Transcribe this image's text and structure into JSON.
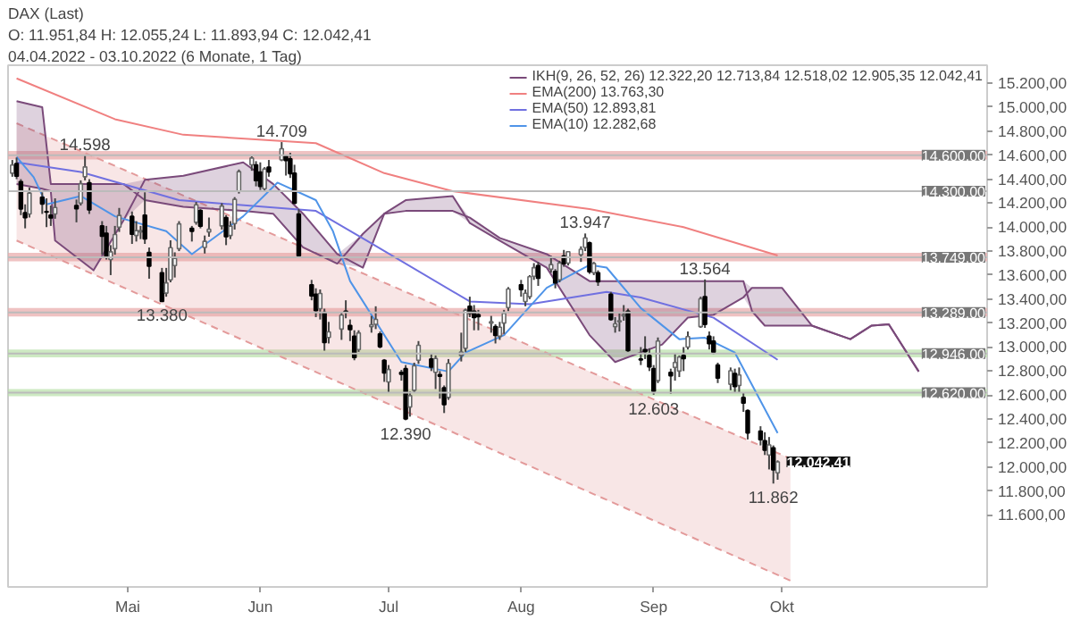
{
  "chart_data": {
    "type": "candlestick",
    "title": "DAX (Last)",
    "subtitle": "04.04.2022 - 03.10.2022 (6 Monate, 1 Tag)",
    "annotations": [
      "O: 11.951,84 H: 12.055,24 L: 11.893,94 C: 12.042,41",
      {
        "text": "14.598",
        "x": "2022-04-21",
        "y": 14598
      },
      {
        "text": "14.709",
        "x": "2022-06-06",
        "y": 14709
      },
      {
        "text": "13.380",
        "x": "2022-05-09",
        "y": 13380
      },
      {
        "text": "12.390",
        "x": "2022-07-05",
        "y": 12390
      },
      {
        "text": "13.947",
        "x": "2022-08-16",
        "y": 13947
      },
      {
        "text": "13.564",
        "x": "2022-09-13",
        "y": 13564
      },
      {
        "text": "12.603",
        "x": "2022-09-01",
        "y": 12603
      },
      {
        "text": "11.862",
        "x": "2022-09-29",
        "y": 11862
      },
      {
        "text": "12.042,41",
        "x": "2022-09-30",
        "y": 12042.41
      }
    ],
    "x": [
      "2022-04-04",
      "2022-04-05",
      "2022-04-06",
      "2022-04-07",
      "2022-04-08",
      "2022-04-11",
      "2022-04-12",
      "2022-04-13",
      "2022-04-14",
      "2022-04-19",
      "2022-04-20",
      "2022-04-21",
      "2022-04-22",
      "2022-04-25",
      "2022-04-26",
      "2022-04-27",
      "2022-04-28",
      "2022-04-29",
      "2022-05-02",
      "2022-05-03",
      "2022-05-04",
      "2022-05-05",
      "2022-05-06",
      "2022-05-09",
      "2022-05-10",
      "2022-05-11",
      "2022-05-12",
      "2022-05-13",
      "2022-05-16",
      "2022-05-17",
      "2022-05-18",
      "2022-05-19",
      "2022-05-20",
      "2022-05-23",
      "2022-05-24",
      "2022-05-25",
      "2022-05-26",
      "2022-05-27",
      "2022-05-30",
      "2022-05-31",
      "2022-06-01",
      "2022-06-02",
      "2022-06-03",
      "2022-06-06",
      "2022-06-07",
      "2022-06-08",
      "2022-06-09",
      "2022-06-10",
      "2022-06-13",
      "2022-06-14",
      "2022-06-15",
      "2022-06-16",
      "2022-06-17",
      "2022-06-20",
      "2022-06-21",
      "2022-06-22",
      "2022-06-23",
      "2022-06-24",
      "2022-06-27",
      "2022-06-28",
      "2022-06-29",
      "2022-06-30",
      "2022-07-01",
      "2022-07-04",
      "2022-07-05",
      "2022-07-06",
      "2022-07-07",
      "2022-07-08",
      "2022-07-11",
      "2022-07-12",
      "2022-07-13",
      "2022-07-14",
      "2022-07-15",
      "2022-07-18",
      "2022-07-19",
      "2022-07-20",
      "2022-07-21",
      "2022-07-22",
      "2022-07-25",
      "2022-07-26",
      "2022-07-27",
      "2022-07-28",
      "2022-07-29",
      "2022-08-01",
      "2022-08-02",
      "2022-08-03",
      "2022-08-04",
      "2022-08-05",
      "2022-08-08",
      "2022-08-09",
      "2022-08-10",
      "2022-08-11",
      "2022-08-12",
      "2022-08-15",
      "2022-08-16",
      "2022-08-17",
      "2022-08-18",
      "2022-08-19",
      "2022-08-22",
      "2022-08-23",
      "2022-08-24",
      "2022-08-25",
      "2022-08-26",
      "2022-08-29",
      "2022-08-30",
      "2022-08-31",
      "2022-09-01",
      "2022-09-02",
      "2022-09-05",
      "2022-09-06",
      "2022-09-07",
      "2022-09-08",
      "2022-09-09",
      "2022-09-12",
      "2022-09-13",
      "2022-09-14",
      "2022-09-15",
      "2022-09-16",
      "2022-09-19",
      "2022-09-20",
      "2022-09-21",
      "2022-09-22",
      "2022-09-23",
      "2022-09-26",
      "2022-09-27",
      "2022-09-28",
      "2022-09-29",
      "2022-09-30"
    ],
    "ohlc": [
      [
        14450,
        14560,
        14420,
        14518
      ],
      [
        14530,
        14580,
        14400,
        14424
      ],
      [
        14380,
        14400,
        14100,
        14152
      ],
      [
        14120,
        14190,
        13990,
        14078
      ],
      [
        14110,
        14330,
        14080,
        14284
      ],
      [
        14250,
        14290,
        14110,
        14193
      ],
      [
        14130,
        14240,
        14000,
        14125
      ],
      [
        14100,
        14180,
        14010,
        14076
      ],
      [
        14110,
        14240,
        14070,
        14164
      ],
      [
        14180,
        14230,
        14040,
        14153
      ],
      [
        14200,
        14390,
        14180,
        14362
      ],
      [
        14420,
        14598,
        14390,
        14502
      ],
      [
        14370,
        14400,
        14110,
        14143
      ],
      [
        14010,
        14050,
        13770,
        13924
      ],
      [
        13950,
        14010,
        13730,
        13757
      ],
      [
        13730,
        13850,
        13600,
        13794
      ],
      [
        13820,
        14010,
        13770,
        13939
      ],
      [
        14000,
        14160,
        13960,
        14098
      ],
      [
        14090,
        14130,
        13860,
        13940
      ],
      [
        13930,
        14050,
        13880,
        13971
      ],
      [
        13960,
        14010,
        13900,
        13971
      ],
      [
        14100,
        14290,
        13860,
        13902
      ],
      [
        13790,
        13830,
        13570,
        13674
      ],
      [
        13620,
        13660,
        13380,
        13381
      ],
      [
        13450,
        13660,
        13420,
        13535
      ],
      [
        13560,
        13890,
        13540,
        13829
      ],
      [
        13680,
        13790,
        13580,
        13740
      ],
      [
        13820,
        14050,
        13800,
        14027
      ],
      [
        13990,
        14010,
        13880,
        13964
      ],
      [
        14040,
        14210,
        14020,
        14186
      ],
      [
        14140,
        14150,
        13990,
        14008
      ],
      [
        13830,
        13930,
        13780,
        13882
      ],
      [
        13960,
        14080,
        13920,
        13982
      ],
      [
        14010,
        14200,
        13980,
        14176
      ],
      [
        14080,
        14100,
        13850,
        13920
      ],
      [
        13930,
        14050,
        13900,
        14008
      ],
      [
        14030,
        14250,
        13980,
        14232
      ],
      [
        14300,
        14480,
        14280,
        14463
      ],
      [
        14520,
        14590,
        14470,
        14576
      ],
      [
        14520,
        14550,
        14340,
        14388
      ],
      [
        14460,
        14540,
        14310,
        14340
      ],
      [
        14320,
        14500,
        14300,
        14485
      ],
      [
        14500,
        14560,
        14420,
        14461
      ],
      [
        14560,
        14709,
        14550,
        14654
      ],
      [
        14590,
        14600,
        14430,
        14556
      ],
      [
        14570,
        14620,
        14410,
        14446
      ],
      [
        14450,
        14520,
        14190,
        14199
      ],
      [
        14110,
        14150,
        13750,
        13762
      ],
      [
        13520,
        13560,
        13390,
        13427
      ],
      [
        13440,
        13490,
        13250,
        13304
      ],
      [
        13320,
        13480,
        13230,
        13447
      ],
      [
        13290,
        13320,
        12970,
        13038
      ],
      [
        13080,
        13210,
        13030,
        13127
      ],
      [
        13150,
        13290,
        13060,
        13266
      ],
      [
        13300,
        13390,
        13240,
        13293
      ],
      [
        13180,
        13230,
        13050,
        13145
      ],
      [
        13090,
        13140,
        12890,
        12913
      ],
      [
        12980,
        13140,
        12960,
        13118
      ],
      [
        13170,
        13260,
        13120,
        13186
      ],
      [
        13190,
        13340,
        13150,
        13231
      ],
      [
        13110,
        13130,
        12990,
        13003
      ],
      [
        12890,
        12900,
        12710,
        12784
      ],
      [
        12710,
        12850,
        12620,
        12813
      ],
      [
        12790,
        12810,
        12720,
        12773
      ],
      [
        12820,
        12850,
        12390,
        12401
      ],
      [
        12500,
        12630,
        12420,
        12595
      ],
      [
        12640,
        12870,
        12620,
        12843
      ],
      [
        12890,
        13050,
        12860,
        13015
      ],
      [
        12900,
        12940,
        12800,
        12833
      ],
      [
        12790,
        12930,
        12650,
        12905
      ],
      [
        12770,
        12800,
        12570,
        12757
      ],
      [
        12660,
        12680,
        12450,
        12519
      ],
      [
        12580,
        12900,
        12560,
        12864
      ],
      [
        12930,
        13120,
        12880,
        12959
      ],
      [
        12990,
        13320,
        12960,
        13308
      ],
      [
        13340,
        13420,
        13250,
        13282
      ],
      [
        13300,
        13350,
        13140,
        13246
      ],
      [
        13270,
        13310,
        13140,
        13254
      ],
      [
        13200,
        13260,
        13120,
        13211
      ],
      [
        13170,
        13190,
        13030,
        13097
      ],
      [
        13090,
        13210,
        13060,
        13166
      ],
      [
        13200,
        13310,
        13110,
        13282
      ],
      [
        13330,
        13500,
        13300,
        13484
      ],
      [
        13520,
        13560,
        13420,
        13479
      ],
      [
        13380,
        13480,
        13340,
        13449
      ],
      [
        13420,
        13600,
        13400,
        13587
      ],
      [
        13590,
        13700,
        13560,
        13662
      ],
      [
        13680,
        13710,
        13510,
        13574
      ],
      [
        13650,
        13760,
        13620,
        13688
      ],
      [
        13630,
        13650,
        13490,
        13535
      ],
      [
        13560,
        13720,
        13540,
        13700
      ],
      [
        13760,
        13810,
        13670,
        13694
      ],
      [
        13700,
        13800,
        13680,
        13795
      ],
      [
        13770,
        13840,
        13710,
        13816
      ],
      [
        13830,
        13947,
        13800,
        13910
      ],
      [
        13870,
        13880,
        13610,
        13627
      ],
      [
        13620,
        13710,
        13600,
        13697
      ],
      [
        13620,
        13640,
        13510,
        13545
      ],
      [
        13440,
        13460,
        13220,
        13230
      ],
      [
        13170,
        13250,
        13120,
        13194
      ],
      [
        13210,
        13280,
        13130,
        13220
      ],
      [
        13260,
        13350,
        13220,
        13272
      ],
      [
        13300,
        13320,
        12960,
        12971
      ],
      [
        12900,
        13000,
        12850,
        12893
      ],
      [
        12980,
        13090,
        12900,
        12961
      ],
      [
        12930,
        12990,
        12800,
        12835
      ],
      [
        12820,
        12850,
        12603,
        12631
      ],
      [
        12720,
        13080,
        12700,
        13050
      ],
      [
        12790,
        12820,
        12610,
        12761
      ],
      [
        12830,
        12950,
        12720,
        12872
      ],
      [
        12800,
        12930,
        12750,
        12916
      ],
      [
        12930,
        13000,
        12800,
        12904
      ],
      [
        13000,
        13130,
        12980,
        13088
      ],
      [
        13170,
        13420,
        13160,
        13403
      ],
      [
        13420,
        13564,
        13160,
        13189
      ],
      [
        13090,
        13130,
        12980,
        13028
      ],
      [
        13050,
        13090,
        12940,
        12957
      ],
      [
        12850,
        12870,
        12700,
        12741
      ],
      [
        12690,
        12830,
        12640,
        12803
      ],
      [
        12780,
        12820,
        12620,
        12671
      ],
      [
        12680,
        12830,
        12620,
        12767
      ],
      [
        12580,
        12620,
        12460,
        12532
      ],
      [
        12470,
        12480,
        12230,
        12284
      ],
      [
        12300,
        12340,
        12180,
        12227
      ],
      [
        12220,
        12290,
        12100,
        12140
      ],
      [
        12100,
        12250,
        11980,
        12184
      ],
      [
        12160,
        12180,
        11862,
        11976
      ],
      [
        11951.84,
        12055.24,
        11893.94,
        12042.41
      ]
    ],
    "series": [
      {
        "type": "line",
        "x": [
          "2022-04-05",
          "2022-10-03"
        ],
        "values": [
          14866,
          12070
        ],
        "lower": [
          13888,
          11053
        ],
        "upper": [
          14866,
          12070
        ],
        "color": "#e39a9a",
        "line_style": "dashed"
      },
      {
        "type": "line",
        "x": [
          "2022-04-05",
          "2022-10-03"
        ],
        "values": [
          13888,
          11053
        ],
        "color": "#e39a9a",
        "line_style": "dashed"
      },
      {
        "type": "line",
        "name": "IKH(9, 26, 52, 26) 12.322,20 12.713,84 12.518,02 12.905,35 12.042,41",
        "color": "#7a4a7a",
        "x": [
          "2022-04-05",
          "2022-04-11",
          "2022-04-13",
          "2022-04-14",
          "2022-04-23",
          "2022-04-30",
          "2022-05-05",
          "2022-05-14",
          "2022-05-28",
          "2022-06-04",
          "2022-06-11",
          "2022-06-19",
          "2022-06-25",
          "2022-06-30",
          "2022-07-05",
          "2022-07-16",
          "2022-07-20",
          "2022-07-27",
          "2022-08-07",
          "2022-08-17",
          "2022-08-23",
          "2022-09-03",
          "2022-09-09",
          "2022-09-15",
          "2022-09-22",
          "2022-09-24",
          "2022-09-27",
          "2022-10-01",
          "2022-10-08",
          "2022-10-17",
          "2022-10-22",
          "2022-10-26",
          "2022-11-02"
        ],
        "values": [
          14360,
          14320,
          14300,
          13888,
          13640,
          14056,
          14394,
          14428,
          14540,
          14360,
          14112,
          13775,
          13662,
          14112,
          14225,
          14259,
          14034,
          13888,
          13662,
          13100,
          12875,
          13021,
          13246,
          13269,
          13415,
          13494,
          13494,
          13494,
          13179,
          13066,
          13179,
          13190,
          12796
        ],
        "lower": [
          14360,
          14320,
          14300,
          13888,
          13640,
          14056,
          14225,
          14169,
          14135,
          14112,
          13831,
          13696,
          13662,
          14112,
          14135,
          14135,
          14034,
          13888,
          13662,
          13100,
          12875,
          13021,
          13246,
          13269,
          13415,
          13300,
          13179,
          13179,
          13179,
          13066,
          13179,
          13190,
          12796
        ],
        "upper": [
          15050,
          15000,
          14360,
          14360,
          14360,
          14360,
          14394,
          14428,
          14540,
          14360,
          14112,
          13775,
          13944,
          14112,
          14225,
          14259,
          14079,
          13910,
          13775,
          13550,
          13550,
          13550,
          13550,
          13550,
          13550,
          13494,
          13494,
          13494,
          13179,
          13066,
          13179,
          13190,
          12796
        ]
      },
      {
        "type": "line",
        "color": "#7a4a7a",
        "x": [
          "2022-04-05",
          "2022-04-11",
          "2022-04-13",
          "2022-04-14",
          "2022-04-23",
          "2022-04-30",
          "2022-05-05",
          "2022-05-14",
          "2022-05-28",
          "2022-06-04",
          "2022-06-11",
          "2022-06-19",
          "2022-06-25",
          "2022-06-30",
          "2022-07-05",
          "2022-07-16",
          "2022-07-20",
          "2022-07-27",
          "2022-08-07",
          "2022-08-17",
          "2022-08-23",
          "2022-09-03",
          "2022-09-09",
          "2022-09-15",
          "2022-09-22",
          "2022-09-24",
          "2022-09-27",
          "2022-10-01",
          "2022-10-08",
          "2022-10-17",
          "2022-10-22",
          "2022-10-26",
          "2022-11-02"
        ],
        "values": [
          15050,
          15000,
          14360,
          14360,
          14360,
          14360,
          14225,
          14169,
          14135,
          14112,
          13831,
          13696,
          13944,
          14112,
          14135,
          14135,
          14079,
          13910,
          13775,
          13550,
          13550,
          13550,
          13550,
          13550,
          13550,
          13300,
          13179,
          13179,
          13179,
          13066,
          13179,
          13190,
          12796
        ]
      },
      {
        "type": "line",
        "name": "EMA(200) 13.763,30",
        "color": "#f08080",
        "x": [
          "2022-04-05",
          "2022-04-28",
          "2022-05-14",
          "2022-06-14",
          "2022-06-30",
          "2022-07-16",
          "2022-08-17",
          "2022-09-08",
          "2022-09-30"
        ],
        "values": [
          15240,
          14900,
          14770,
          14700,
          14450,
          14300,
          14150,
          14000,
          13763.3
        ]
      },
      {
        "type": "line",
        "name": "EMA(50) 12.893,81",
        "color": "#7070e0",
        "x": [
          "2022-04-05",
          "2022-04-20",
          "2022-05-13",
          "2022-06-14",
          "2022-06-26",
          "2022-07-20",
          "2022-08-03",
          "2022-08-21",
          "2022-08-29",
          "2022-09-15",
          "2022-09-30"
        ],
        "values": [
          14540,
          14460,
          14225,
          14135,
          13885,
          13380,
          13357,
          13460,
          13413,
          13245,
          12893.81
        ]
      },
      {
        "type": "line",
        "name": "EMA(10) 12.282,68",
        "color": "#4f94e8",
        "x": [
          "2022-04-05",
          "2022-04-09",
          "2022-04-12",
          "2022-04-20",
          "2022-04-28",
          "2022-05-10",
          "2022-05-16",
          "2022-05-28",
          "2022-06-05",
          "2022-06-14",
          "2022-06-18",
          "2022-06-22",
          "2022-07-04",
          "2022-07-15",
          "2022-07-19",
          "2022-07-28",
          "2022-08-07",
          "2022-08-17",
          "2022-08-21",
          "2022-08-29",
          "2022-09-07",
          "2022-09-13",
          "2022-09-20",
          "2022-09-30"
        ],
        "values": [
          14585,
          14416,
          14190,
          14259,
          14090,
          13966,
          13775,
          14090,
          14371,
          14225,
          13966,
          13550,
          12875,
          12796,
          12954,
          13100,
          13494,
          13685,
          13663,
          13325,
          13066,
          13078,
          12954,
          12282.68
        ]
      }
    ],
    "xlim": [
      "2022-04-03",
      "2022-11-18"
    ],
    "ylim": [
      11000,
      15350
    ],
    "xticks": [
      {
        "value": "2022-05-01",
        "label": "Mai"
      },
      {
        "value": "2022-06-01",
        "label": "Jun"
      },
      {
        "value": "2022-07-01",
        "label": "Jul"
      },
      {
        "value": "2022-08-01",
        "label": "Aug"
      },
      {
        "value": "2022-09-01",
        "label": "Sep"
      },
      {
        "value": "2022-10-01",
        "label": "Okt"
      }
    ],
    "yticks": [
      {
        "value": 11600,
        "label": "11.600,00"
      },
      {
        "value": 11800,
        "label": "11.800,00"
      },
      {
        "value": 12000,
        "label": "12.000,00"
      },
      {
        "value": 12200,
        "label": "12.200,00"
      },
      {
        "value": 12400,
        "label": "12.400,00"
      },
      {
        "value": 12600,
        "label": "12.600,00"
      },
      {
        "value": 12800,
        "label": "12.800,00"
      },
      {
        "value": 13000,
        "label": "13.000,00"
      },
      {
        "value": 13200,
        "label": "13.200,00"
      },
      {
        "value": 13400,
        "label": "13.400,00"
      },
      {
        "value": 13600,
        "label": "13.600,00"
      },
      {
        "value": 13800,
        "label": "13.800,00"
      },
      {
        "value": 14000,
        "label": "14.000,00"
      },
      {
        "value": 14200,
        "label": "14.200,00"
      },
      {
        "value": 14400,
        "label": "14.400,00"
      },
      {
        "value": 14600,
        "label": "14.600,00"
      },
      {
        "value": 14800,
        "label": "14.800,00"
      },
      {
        "value": 15000,
        "label": "15.000,00"
      },
      {
        "value": 15200,
        "label": "15.200,00"
      }
    ],
    "ref_lines": [
      {
        "axis": "y",
        "value": 14600,
        "label": "14.600,00",
        "color": "#bbbbbb"
      },
      {
        "axis": "y",
        "value": 14300,
        "label": "14.300,00",
        "color": "#bbbbbb"
      },
      {
        "axis": "y",
        "value": 13749,
        "label": "13.749,00",
        "color": "#bbbbbb"
      },
      {
        "axis": "y",
        "value": 13289,
        "label": "13.289,00",
        "color": "#bbbbbb"
      },
      {
        "axis": "y",
        "value": 12946,
        "label": "12.946,00",
        "color": "#bbbbbb"
      },
      {
        "axis": "y",
        "value": 12620,
        "label": "12.620,00",
        "color": "#bbbbbb"
      }
    ],
    "bands": [
      {
        "axis": "y",
        "from": 14565,
        "to": 14635,
        "color": "#e8a8a8"
      },
      {
        "axis": "y",
        "from": 13715,
        "to": 13785,
        "color": "#e8a8a8"
      },
      {
        "axis": "y",
        "from": 13255,
        "to": 13325,
        "color": "#e8a8a8"
      },
      {
        "axis": "y",
        "from": 12915,
        "to": 12980,
        "color": "#b8e0a8"
      },
      {
        "axis": "y",
        "from": 12590,
        "to": 12650,
        "color": "#b8e0a8"
      }
    ],
    "legend": "top right"
  }
}
